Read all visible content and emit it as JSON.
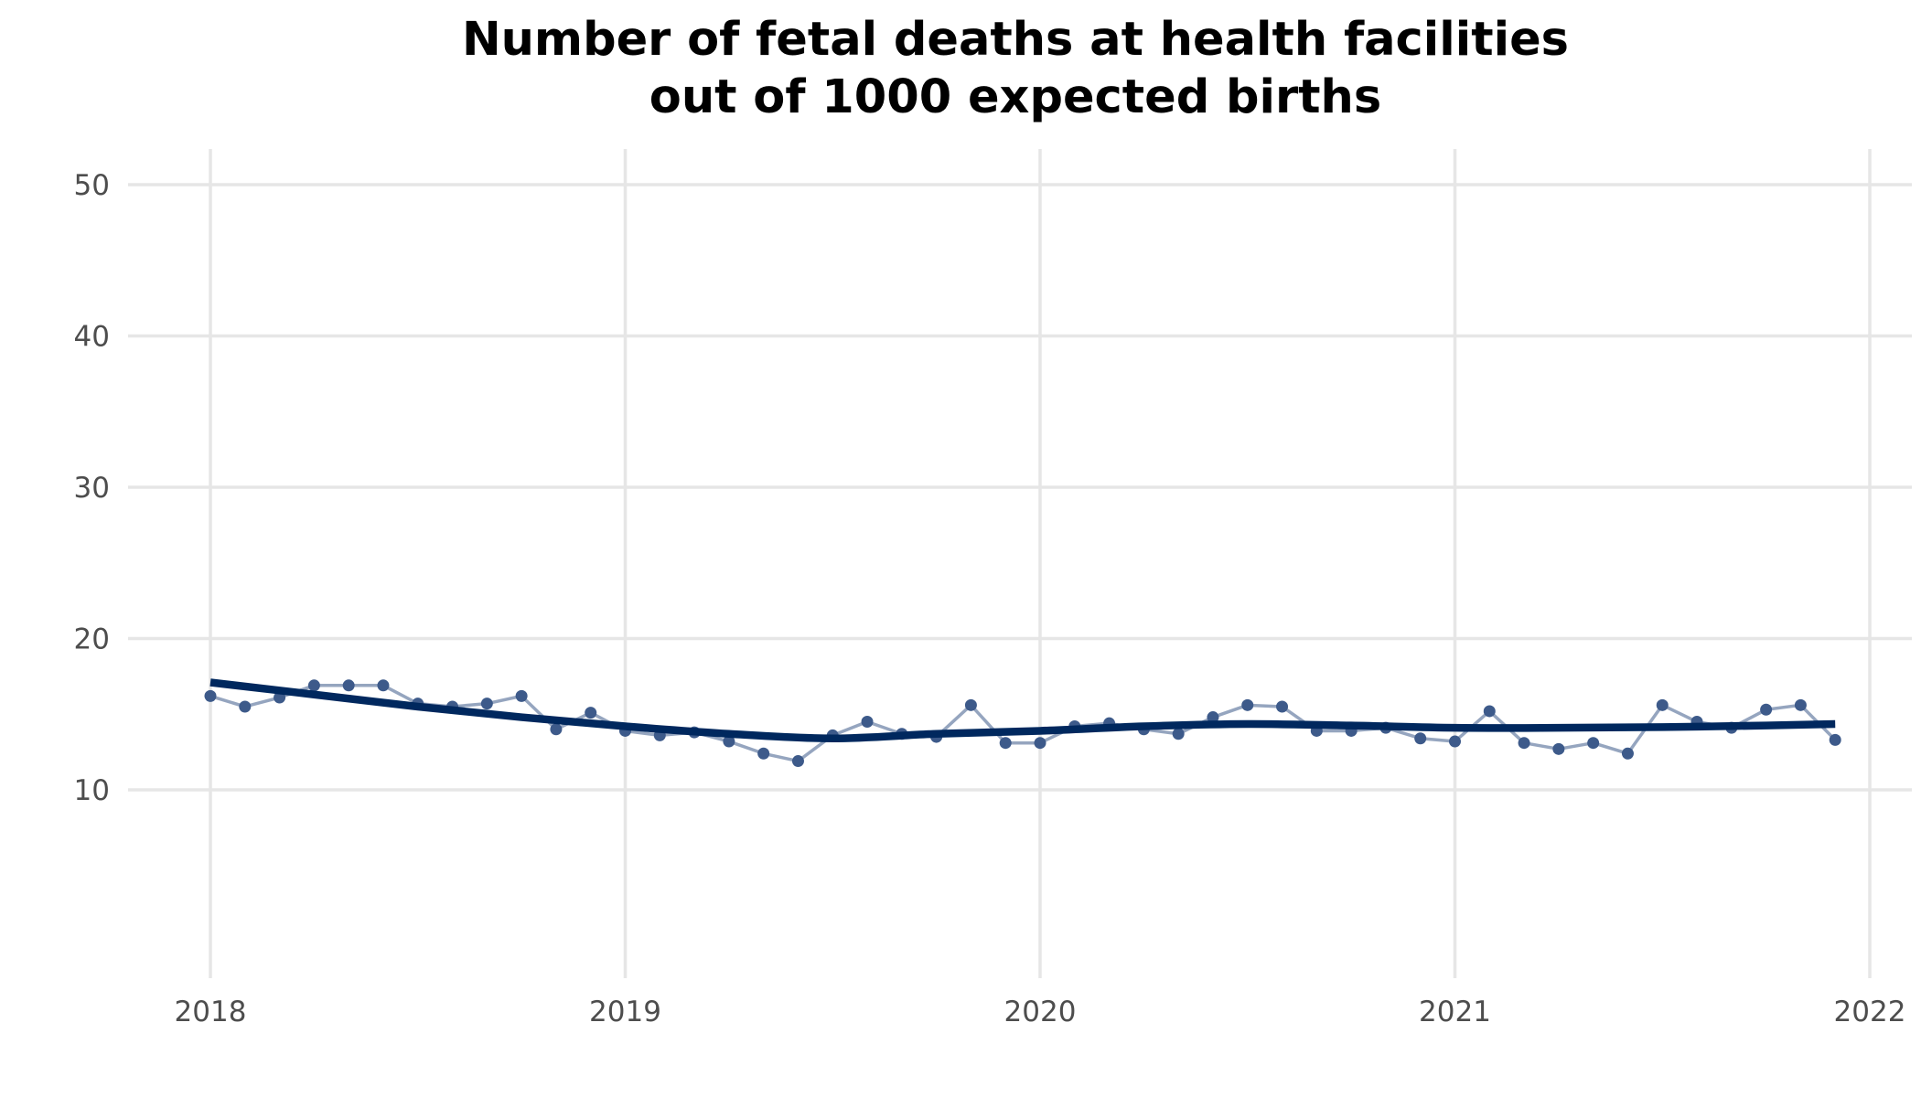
{
  "chart_data": {
    "type": "line",
    "title": "Number of fetal deaths at health facilities out of 1000 expected births",
    "title_lines": [
      "Number of fetal deaths at health facilities",
      "out of 1000 expected births"
    ],
    "xlabel": "",
    "ylabel": "",
    "x_ticks": [
      "2018",
      "2019",
      "2020",
      "2021",
      "2022"
    ],
    "y_ticks": [
      "10",
      "20",
      "30",
      "40",
      "50"
    ],
    "xlim": [
      "2018-01",
      "2022-01"
    ],
    "ylim": [
      0,
      52.5
    ],
    "grid": true,
    "legend": "none",
    "series": [
      {
        "style": "monthly-points",
        "color": "#8a9bb8",
        "point_color": "#3d5a8a",
        "x": [
          "2018-01",
          "2018-02",
          "2018-03",
          "2018-04",
          "2018-05",
          "2018-06",
          "2018-07",
          "2018-08",
          "2018-09",
          "2018-10",
          "2018-11",
          "2018-12",
          "2019-01",
          "2019-02",
          "2019-03",
          "2019-04",
          "2019-05",
          "2019-06",
          "2019-07",
          "2019-08",
          "2019-09",
          "2019-10",
          "2019-11",
          "2019-12",
          "2020-01",
          "2020-02",
          "2020-03",
          "2020-04",
          "2020-05",
          "2020-06",
          "2020-07",
          "2020-08",
          "2020-09",
          "2020-10",
          "2020-11",
          "2020-12",
          "2021-01",
          "2021-02",
          "2021-03",
          "2021-04",
          "2021-05",
          "2021-06",
          "2021-07",
          "2021-08",
          "2021-09",
          "2021-10",
          "2021-11",
          "2021-12"
        ],
        "values": [
          16.2,
          15.5,
          16.1,
          16.9,
          16.9,
          16.9,
          15.7,
          15.5,
          15.7,
          16.2,
          14.0,
          15.1,
          13.9,
          13.6,
          13.8,
          13.2,
          12.4,
          11.9,
          13.6,
          14.5,
          13.7,
          13.5,
          15.6,
          13.1,
          13.1,
          14.2,
          14.4,
          14.0,
          13.7,
          14.8,
          15.6,
          15.5,
          13.9,
          13.9,
          14.1,
          13.4,
          13.2,
          15.2,
          13.1,
          12.7,
          13.1,
          12.4,
          15.6,
          14.5,
          14.1,
          15.3,
          15.6,
          13.3
        ]
      },
      {
        "style": "smooth-trend",
        "color": "#00285e",
        "x": [
          "2018-01",
          "2018-04",
          "2018-07",
          "2018-10",
          "2019-01",
          "2019-04",
          "2019-07",
          "2019-10",
          "2020-01",
          "2020-04",
          "2020-07",
          "2020-10",
          "2021-01",
          "2021-04",
          "2021-07",
          "2021-10",
          "2021-12"
        ],
        "values": [
          17.1,
          16.3,
          15.5,
          14.8,
          14.2,
          13.7,
          13.4,
          13.7,
          13.9,
          14.2,
          14.35,
          14.25,
          14.1,
          14.1,
          14.15,
          14.25,
          14.35
        ]
      }
    ]
  }
}
